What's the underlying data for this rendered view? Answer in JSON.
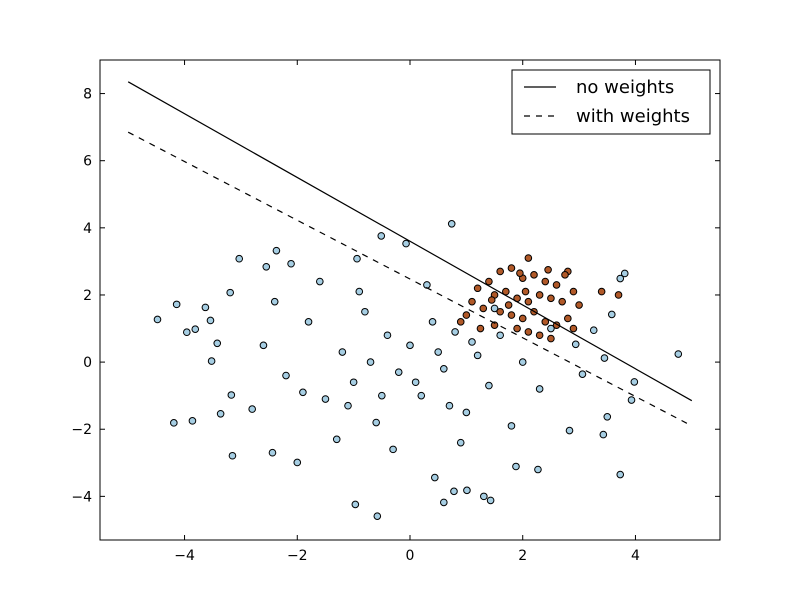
{
  "chart_data": {
    "type": "scatter",
    "xlim": [
      -5.5,
      5.5
    ],
    "ylim": [
      -5.3,
      9
    ],
    "xticks": [
      -4,
      -2,
      0,
      2,
      4
    ],
    "yticks": [
      -4,
      -2,
      0,
      2,
      4,
      6,
      8
    ],
    "xtick_labels": [
      "−4",
      "−2",
      "0",
      "2",
      "4"
    ],
    "ytick_labels": [
      "−4",
      "−2",
      "0",
      "2",
      "4",
      "6",
      "8"
    ],
    "grid": false,
    "legend_position": "top-right",
    "colors": {
      "class0": "#a6cee3",
      "class1": "#b15928",
      "edge": "#000000",
      "line": "#000000"
    },
    "lines": [
      {
        "name": "no weights",
        "style": "solid",
        "x": [
          -5,
          5
        ],
        "y": [
          8.35,
          -1.15
        ]
      },
      {
        "name": "with weights",
        "style": "dashed",
        "x": [
          -5,
          5
        ],
        "y": [
          6.85,
          -1.9
        ]
      }
    ],
    "series": [
      {
        "class": 0,
        "points": [
          [
            -4.48,
            1.27
          ],
          [
            -4.14,
            1.72
          ],
          [
            -3.96,
            0.89
          ],
          [
            -3.81,
            0.98
          ],
          [
            -3.63,
            1.63
          ],
          [
            -3.54,
            1.24
          ],
          [
            -4.19,
            -1.81
          ],
          [
            -3.86,
            -1.75
          ],
          [
            -3.36,
            -1.54
          ],
          [
            -3.17,
            -0.98
          ],
          [
            -3.15,
            -2.79
          ],
          [
            -3.03,
            3.08
          ],
          [
            -3.19,
            2.07
          ],
          [
            -3.42,
            0.56
          ],
          [
            -3.52,
            0.03
          ],
          [
            -2.55,
            2.84
          ],
          [
            -2.37,
            3.32
          ],
          [
            -2.11,
            2.93
          ],
          [
            -2.0,
            -2.99
          ],
          [
            -2.44,
            -2.7
          ],
          [
            -0.97,
            -4.24
          ],
          [
            -0.58,
            -4.59
          ],
          [
            0.74,
            4.12
          ],
          [
            -0.07,
            3.53
          ],
          [
            -0.51,
            3.76
          ],
          [
            -0.94,
            3.08
          ],
          [
            0.44,
            -3.44
          ],
          [
            0.6,
            -4.18
          ],
          [
            0.78,
            -3.85
          ],
          [
            1.01,
            -3.82
          ],
          [
            1.31,
            -4.0
          ],
          [
            1.43,
            -4.12
          ],
          [
            2.27,
            -3.2
          ],
          [
            1.88,
            -3.11
          ],
          [
            2.83,
            -2.04
          ],
          [
            3.43,
            -2.16
          ],
          [
            3.5,
            -1.63
          ],
          [
            3.73,
            -3.35
          ],
          [
            3.93,
            -1.13
          ],
          [
            3.98,
            -0.59
          ],
          [
            3.58,
            1.42
          ],
          [
            3.81,
            2.64
          ],
          [
            3.73,
            2.49
          ],
          [
            4.76,
            0.24
          ],
          [
            3.26,
            0.95
          ],
          [
            3.45,
            0.12
          ],
          [
            2.94,
            0.53
          ],
          [
            3.06,
            -0.36
          ],
          [
            -2.6,
            0.5
          ],
          [
            -2.2,
            -0.4
          ],
          [
            -1.8,
            1.2
          ],
          [
            -1.5,
            -1.1
          ],
          [
            -1.2,
            0.3
          ],
          [
            -1.0,
            -0.6
          ],
          [
            -0.8,
            1.5
          ],
          [
            -0.6,
            -1.8
          ],
          [
            -0.4,
            0.8
          ],
          [
            -0.2,
            -0.3
          ],
          [
            0.0,
            0.5
          ],
          [
            0.2,
            -1.0
          ],
          [
            0.4,
            1.2
          ],
          [
            0.6,
            -0.2
          ],
          [
            0.8,
            0.9
          ],
          [
            1.0,
            -1.5
          ],
          [
            1.2,
            0.2
          ],
          [
            1.4,
            -0.7
          ],
          [
            1.6,
            0.8
          ],
          [
            1.8,
            -1.9
          ],
          [
            2.0,
            0.0
          ],
          [
            2.3,
            -0.8
          ],
          [
            2.5,
            1.0
          ],
          [
            -2.8,
            -1.4
          ],
          [
            -2.4,
            1.8
          ],
          [
            -1.6,
            2.4
          ],
          [
            -1.3,
            -2.3
          ],
          [
            -0.9,
            2.1
          ],
          [
            -0.3,
            -2.6
          ],
          [
            0.3,
            2.3
          ],
          [
            0.9,
            -2.4
          ],
          [
            1.5,
            1.6
          ],
          [
            -1.9,
            -0.9
          ],
          [
            -0.7,
            0.0
          ],
          [
            0.1,
            -0.6
          ],
          [
            0.5,
            0.3
          ],
          [
            1.1,
            0.6
          ],
          [
            -1.1,
            -1.3
          ],
          [
            -0.5,
            -1.0
          ],
          [
            0.7,
            -1.3
          ]
        ]
      },
      {
        "class": 1,
        "points": [
          [
            2.1,
            3.1
          ],
          [
            1.6,
            2.7
          ],
          [
            1.8,
            2.8
          ],
          [
            2.0,
            2.5
          ],
          [
            2.2,
            2.6
          ],
          [
            2.4,
            2.4
          ],
          [
            2.6,
            2.3
          ],
          [
            2.8,
            2.7
          ],
          [
            1.4,
            2.4
          ],
          [
            1.2,
            2.2
          ],
          [
            1.5,
            2.0
          ],
          [
            1.7,
            2.1
          ],
          [
            1.9,
            1.9
          ],
          [
            2.1,
            1.8
          ],
          [
            2.3,
            2.0
          ],
          [
            2.5,
            1.9
          ],
          [
            2.7,
            1.8
          ],
          [
            2.9,
            2.1
          ],
          [
            3.0,
            1.7
          ],
          [
            1.3,
            1.6
          ],
          [
            1.6,
            1.5
          ],
          [
            1.8,
            1.4
          ],
          [
            2.0,
            1.3
          ],
          [
            2.2,
            1.5
          ],
          [
            2.4,
            1.2
          ],
          [
            2.6,
            1.1
          ],
          [
            2.8,
            1.3
          ],
          [
            1.1,
            1.8
          ],
          [
            1.0,
            1.4
          ],
          [
            0.9,
            1.2
          ],
          [
            1.25,
            1.0
          ],
          [
            1.5,
            1.1
          ],
          [
            1.9,
            1.0
          ],
          [
            2.1,
            0.9
          ],
          [
            2.3,
            0.8
          ],
          [
            2.5,
            0.7
          ],
          [
            2.9,
            1.0
          ],
          [
            3.4,
            2.1
          ],
          [
            3.7,
            2.0
          ],
          [
            2.75,
            2.6
          ],
          [
            2.45,
            2.75
          ],
          [
            1.95,
            2.65
          ],
          [
            1.45,
            1.85
          ],
          [
            1.75,
            1.7
          ],
          [
            2.05,
            2.1
          ]
        ]
      }
    ]
  }
}
